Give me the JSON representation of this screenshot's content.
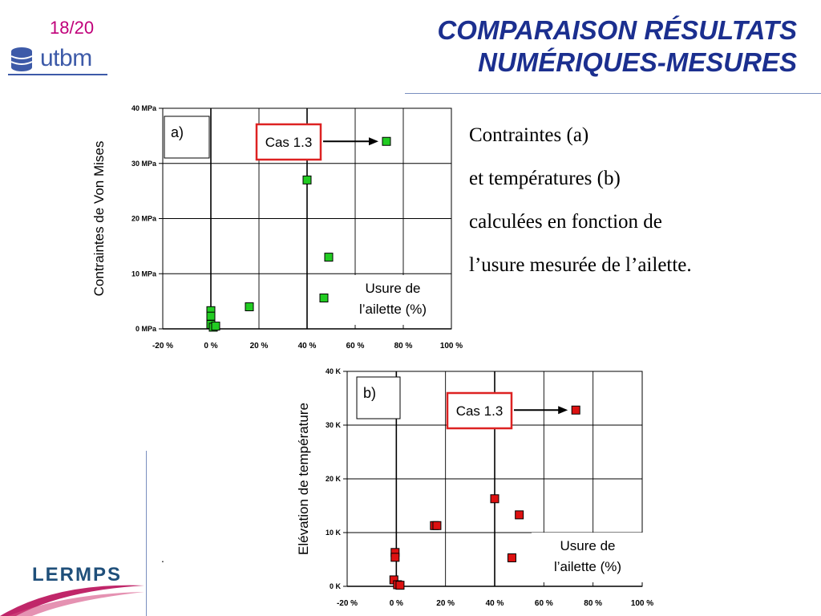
{
  "slide": {
    "page_number": "18/20",
    "logo_text": "utbm",
    "title_line1": "COMPARAISON RÉSULTATS",
    "title_line2": "NUMÉRIQUES-MESURES",
    "description": [
      "Contraintes (a)",
      "et températures (b)",
      "calculées en fonction de",
      "l’usure mesurée de l’ailette."
    ],
    "footer_logo_text": "LERMPS",
    "dot": "."
  },
  "colors": {
    "title": "#1b2f8f",
    "page_number": "#c0007a",
    "series_a": "#22cc22",
    "series_b": "#dd1111",
    "callout_border": "#dd2222"
  },
  "chart_data": [
    {
      "type": "scatter",
      "panel_label": "a)",
      "ylabel": "Contraintes de Von Mises",
      "callout": "Cas 1.3",
      "xlabel_box": [
        "Usure de",
        "l’ailette (%)"
      ],
      "xlim": [
        -20,
        100
      ],
      "ylim": [
        0,
        40
      ],
      "x_ticks": [
        "-20 %",
        "0 %",
        "20 %",
        "40 %",
        "60 %",
        "80 %",
        "100 %"
      ],
      "y_ticks": [
        "0 MPa",
        "10 MPa",
        "20 MPa",
        "30 MPa",
        "40 MPa"
      ],
      "grid": true,
      "series": [
        {
          "color": "#22cc22",
          "points": [
            [
              0,
              3.3
            ],
            [
              0,
              2.3
            ],
            [
              0,
              0.8
            ],
            [
              1,
              0.3
            ],
            [
              2,
              0.5
            ],
            [
              16,
              4
            ],
            [
              40,
              27
            ],
            [
              47,
              5.6
            ],
            [
              49,
              13
            ],
            [
              73,
              34
            ]
          ]
        }
      ]
    },
    {
      "type": "scatter",
      "panel_label": "b)",
      "ylabel": "Elévation de température",
      "callout": "Cas 1.3",
      "xlabel_box": [
        "Usure de",
        "l’ailette (%)"
      ],
      "xlim": [
        -20,
        100
      ],
      "ylim": [
        0,
        40
      ],
      "x_ticks": [
        "-20 %",
        "0 %",
        "20 %",
        "40 %",
        "60 %",
        "80 %",
        "100 %"
      ],
      "y_ticks": [
        "0 K",
        "10 K",
        "20 K",
        "30 K",
        "40 K"
      ],
      "grid": true,
      "series": [
        {
          "color": "#dd1111",
          "points": [
            [
              -0.5,
              6.3
            ],
            [
              -0.5,
              5.4
            ],
            [
              -1,
              1.2
            ],
            [
              0.5,
              0.3
            ],
            [
              1.5,
              0.2
            ],
            [
              15.5,
              11.3
            ],
            [
              16.5,
              11.3
            ],
            [
              40,
              16.3
            ],
            [
              47,
              5.3
            ],
            [
              50,
              13.3
            ],
            [
              73,
              32.8
            ]
          ]
        }
      ]
    }
  ]
}
